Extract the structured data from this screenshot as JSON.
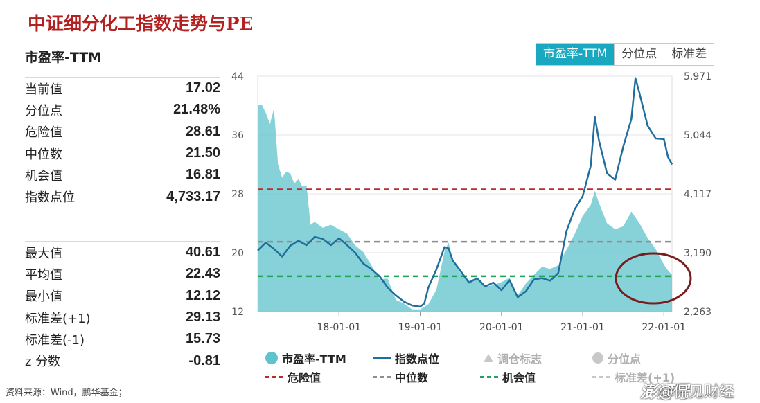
{
  "page_title": "中证细分化工指数走势与PE",
  "panel_title": "市盈率-TTM",
  "tabs": [
    {
      "label": "市盈率-TTM",
      "active": true
    },
    {
      "label": "分位点",
      "active": false
    },
    {
      "label": "标准差",
      "active": false
    }
  ],
  "stats_top": [
    {
      "label": "当前值",
      "value": "17.02"
    },
    {
      "label": "分位点",
      "value": "21.48%"
    },
    {
      "label": "危险值",
      "value": "28.61"
    },
    {
      "label": "中位数",
      "value": "21.50"
    },
    {
      "label": "机会值",
      "value": "16.81"
    },
    {
      "label": "指数点位",
      "value": "4,733.17"
    }
  ],
  "stats_bottom": [
    {
      "label": "最大值",
      "value": "40.61"
    },
    {
      "label": "平均值",
      "value": "22.43"
    },
    {
      "label": "最小值",
      "value": "12.12"
    },
    {
      "label": "标准差(+1)",
      "value": "29.13"
    },
    {
      "label": "标准差(-1)",
      "value": "15.73"
    },
    {
      "label": "z 分数",
      "value": "-0.81"
    }
  ],
  "source": "资料来源：Wind，鹏华基金；",
  "watermark": "澎湃号",
  "author": "@侃见财经",
  "colors": {
    "area_fill": "#5fc3cc",
    "index_line": "#1f6e9c",
    "danger": "#c0282a",
    "median": "#8f8f8f",
    "opportunity": "#21a35a",
    "highlight_circle": "#7a1c1c",
    "active_tab": "#19a8bf"
  },
  "legend": [
    {
      "label": "市盈率-TTM",
      "kind": "area",
      "muted": false
    },
    {
      "label": "指数点位",
      "kind": "line",
      "muted": false
    },
    {
      "label": "调仓标志",
      "kind": "triangle",
      "muted": true
    },
    {
      "label": "分位点",
      "kind": "dot",
      "muted": true
    },
    {
      "label": "危险值",
      "kind": "dash-red",
      "muted": false
    },
    {
      "label": "中位数",
      "kind": "dash-gray",
      "muted": false
    },
    {
      "label": "机会值",
      "kind": "dash-green",
      "muted": false
    },
    {
      "label": "标准差(+1)",
      "kind": "dash-gray-muted",
      "muted": true
    }
  ],
  "chart_data": {
    "type": "area",
    "x_ticks": [
      "18-01-01",
      "19-01-01",
      "20-01-01",
      "21-01-01",
      "22-01-01"
    ],
    "x_tick_values": [
      2018.0,
      2019.0,
      2020.0,
      2021.0,
      2022.0
    ],
    "xlim": [
      2017.0,
      2022.1
    ],
    "y_left_ticks": [
      "44",
      "36",
      "28",
      "20",
      "12"
    ],
    "y_left_lim": [
      12,
      44
    ],
    "y_right_ticks": [
      "5,971",
      "5,044",
      "4,117",
      "3,190",
      "2,263"
    ],
    "y_right_lim": [
      2263,
      5971
    ],
    "reference_lines": [
      {
        "name": "危险值",
        "value": 28.61
      },
      {
        "name": "中位数",
        "value": 21.5
      },
      {
        "name": "机会值",
        "value": 16.81
      }
    ],
    "series": [
      {
        "name": "市盈率-TTM",
        "axis": "left",
        "x": [
          2017.0,
          2017.05,
          2017.1,
          2017.15,
          2017.2,
          2017.25,
          2017.3,
          2017.35,
          2017.4,
          2017.45,
          2017.5,
          2017.55,
          2017.6,
          2017.65,
          2017.7,
          2017.8,
          2017.9,
          2018.0,
          2018.1,
          2018.2,
          2018.3,
          2018.4,
          2018.5,
          2018.6,
          2018.7,
          2018.8,
          2018.9,
          2019.0,
          2019.1,
          2019.2,
          2019.3,
          2019.35,
          2019.4,
          2019.5,
          2019.6,
          2019.7,
          2019.8,
          2019.9,
          2020.0,
          2020.1,
          2020.2,
          2020.3,
          2020.4,
          2020.5,
          2020.6,
          2020.7,
          2020.8,
          2020.9,
          2021.0,
          2021.1,
          2021.15,
          2021.2,
          2021.3,
          2021.4,
          2021.5,
          2021.6,
          2021.7,
          2021.8,
          2021.9,
          2022.0,
          2022.05,
          2022.1
        ],
        "values": [
          40.0,
          40.1,
          39.0,
          37.5,
          39.6,
          32.0,
          30.2,
          31.0,
          30.8,
          29.4,
          30.0,
          29.0,
          29.2,
          23.8,
          24.2,
          23.4,
          23.8,
          23.2,
          22.6,
          21.0,
          20.1,
          18.3,
          16.4,
          16.5,
          13.6,
          13.1,
          12.3,
          12.3,
          13.0,
          15.0,
          20.2,
          21.4,
          19.0,
          17.2,
          16.2,
          16.6,
          15.4,
          15.6,
          16.0,
          16.6,
          14.2,
          15.8,
          17.0,
          18.1,
          17.8,
          18.3,
          20.4,
          22.5,
          25.0,
          26.5,
          28.4,
          26.8,
          24.0,
          23.2,
          23.6,
          25.6,
          24.0,
          22.0,
          20.5,
          18.4,
          17.6,
          17.0
        ]
      },
      {
        "name": "指数点位",
        "axis": "right",
        "x": [
          2017.0,
          2017.1,
          2017.2,
          2017.3,
          2017.4,
          2017.5,
          2017.6,
          2017.7,
          2017.8,
          2017.9,
          2018.0,
          2018.1,
          2018.2,
          2018.3,
          2018.4,
          2018.5,
          2018.6,
          2018.7,
          2018.8,
          2018.9,
          2019.0,
          2019.05,
          2019.1,
          2019.2,
          2019.3,
          2019.35,
          2019.4,
          2019.5,
          2019.6,
          2019.7,
          2019.8,
          2019.9,
          2020.0,
          2020.1,
          2020.2,
          2020.3,
          2020.4,
          2020.5,
          2020.6,
          2020.7,
          2020.8,
          2020.9,
          2021.0,
          2021.1,
          2021.15,
          2021.2,
          2021.3,
          2021.4,
          2021.5,
          2021.6,
          2021.65,
          2021.7,
          2021.8,
          2021.9,
          2022.0,
          2022.05,
          2022.1
        ],
        "values": [
          3225,
          3350,
          3250,
          3130,
          3300,
          3380,
          3310,
          3440,
          3410,
          3310,
          3420,
          3310,
          3190,
          3020,
          2930,
          2820,
          2640,
          2520,
          2420,
          2360,
          2340,
          2390,
          2640,
          2930,
          3280,
          3260,
          3070,
          2900,
          2720,
          2790,
          2660,
          2720,
          2600,
          2760,
          2490,
          2580,
          2770,
          2790,
          2750,
          2870,
          3530,
          3870,
          4080,
          4560,
          5330,
          4960,
          4440,
          4340,
          4860,
          5300,
          5940,
          5700,
          5190,
          4990,
          4980,
          4700,
          4580
        ]
      }
    ]
  }
}
